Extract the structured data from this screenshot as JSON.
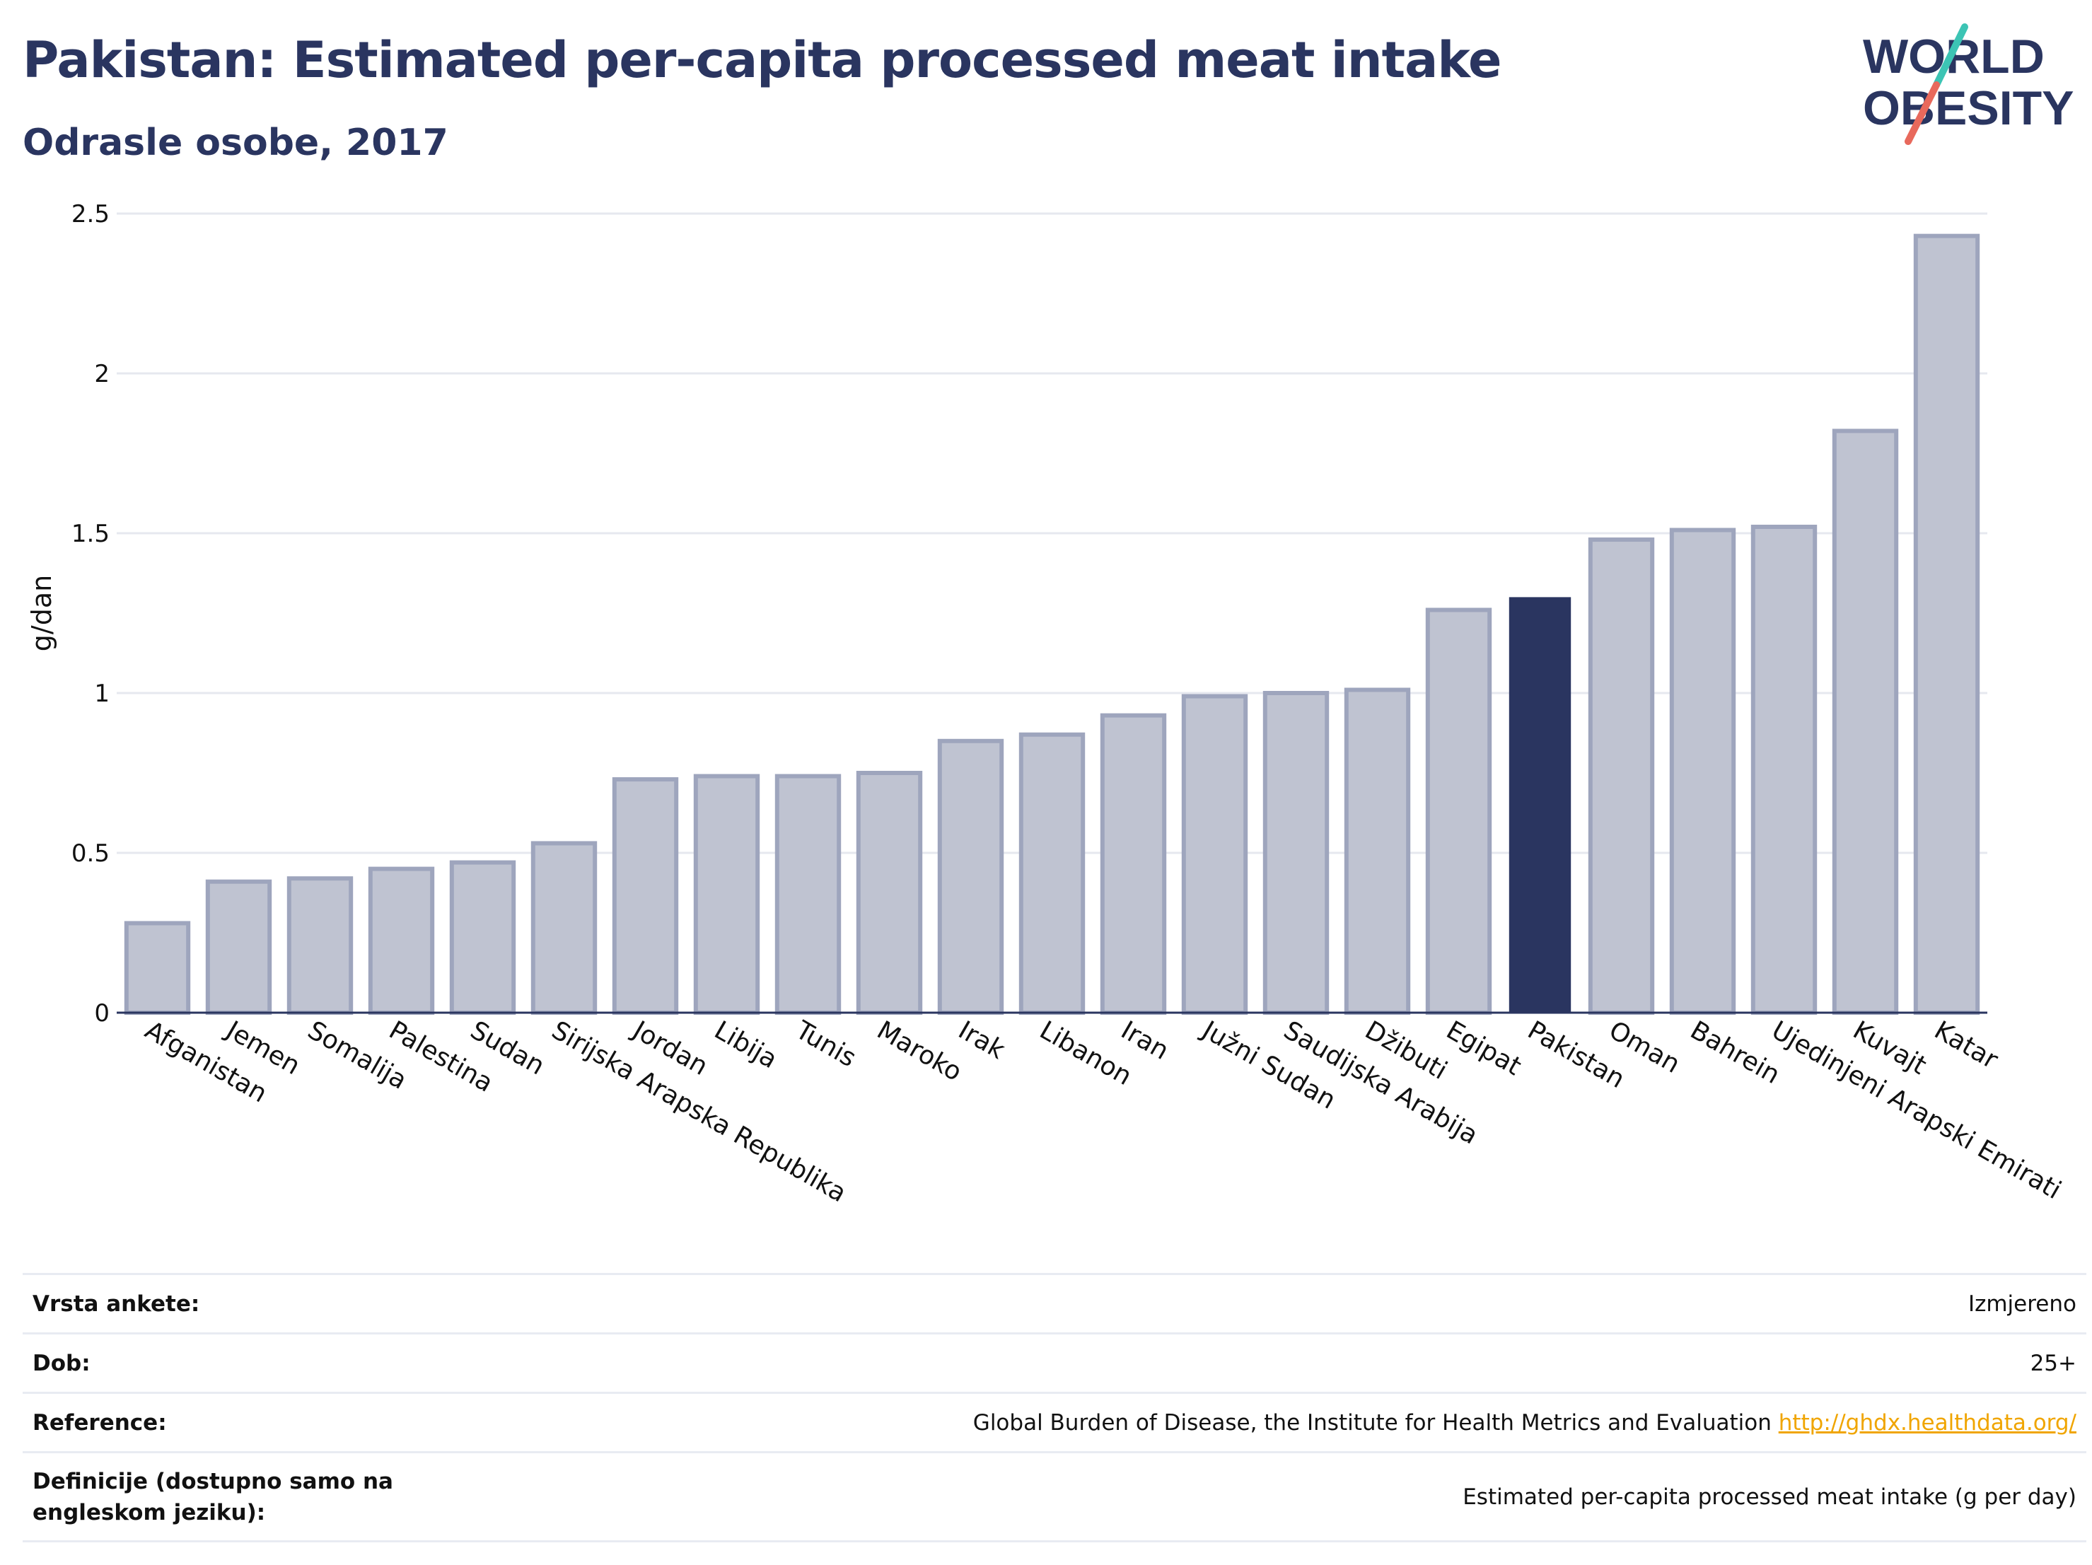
{
  "header": {
    "title": "Pakistan: Estimated per-capita processed meat intake",
    "subtitle": "Odrasle osobe, 2017"
  },
  "logo": {
    "line1": "WORLD",
    "line2": "OBESITY"
  },
  "colors": {
    "highlight_bar": "#2a3560",
    "other_bar_fill": "#bfc3d1",
    "other_bar_stroke": "#9ea5bd",
    "grid": "#e6e8ef",
    "accent_orange": "#f0a500",
    "logo_slash_teal": "#3cc4b4",
    "logo_slash_red": "#e8695c"
  },
  "chart_data": {
    "type": "bar",
    "title": "Pakistan: Estimated per-capita processed meat intake",
    "subtitle": "Odrasle osobe, 2017",
    "xlabel": "",
    "ylabel": "g/dan",
    "ylim": [
      0,
      2.5
    ],
    "yticks": [
      0,
      0.5,
      1,
      1.5,
      2,
      2.5
    ],
    "ytick_labels": [
      "0",
      "0.5",
      "1",
      "1.5",
      "2",
      "2.5"
    ],
    "grid": true,
    "highlight": "Pakistan",
    "categories": [
      "Afganistan",
      "Jemen",
      "Somalija",
      "Palestina",
      "Sudan",
      "Sirijska Arapska Republika",
      "Jordan",
      "Libija",
      "Tunis",
      "Maroko",
      "Irak",
      "Libanon",
      "Iran",
      "Južni Sudan",
      "Saudijska Arabija",
      "Džibuti",
      "Egipat",
      "Pakistan",
      "Oman",
      "Bahrein",
      "Ujedinjeni Arapski Emirati",
      "Kuvajt",
      "Katar"
    ],
    "values": [
      0.28,
      0.41,
      0.42,
      0.45,
      0.47,
      0.53,
      0.73,
      0.74,
      0.74,
      0.75,
      0.85,
      0.87,
      0.93,
      0.99,
      1.0,
      1.01,
      1.26,
      1.3,
      1.48,
      1.51,
      1.52,
      1.82,
      2.43
    ]
  },
  "meta": {
    "rows": [
      {
        "label": "Vrsta ankete:",
        "value": "Izmjereno"
      },
      {
        "label": "Dob:",
        "value": "25+"
      },
      {
        "label": "Reference:",
        "value": "Global Burden of Disease, the Institute for Health Metrics and Evaluation",
        "link": "http://ghdx.healthdata.org/"
      },
      {
        "label": "Definicije (dostupno samo na engleskom jeziku):",
        "value": "Estimated per-capita processed meat intake (g per day)"
      }
    ]
  }
}
